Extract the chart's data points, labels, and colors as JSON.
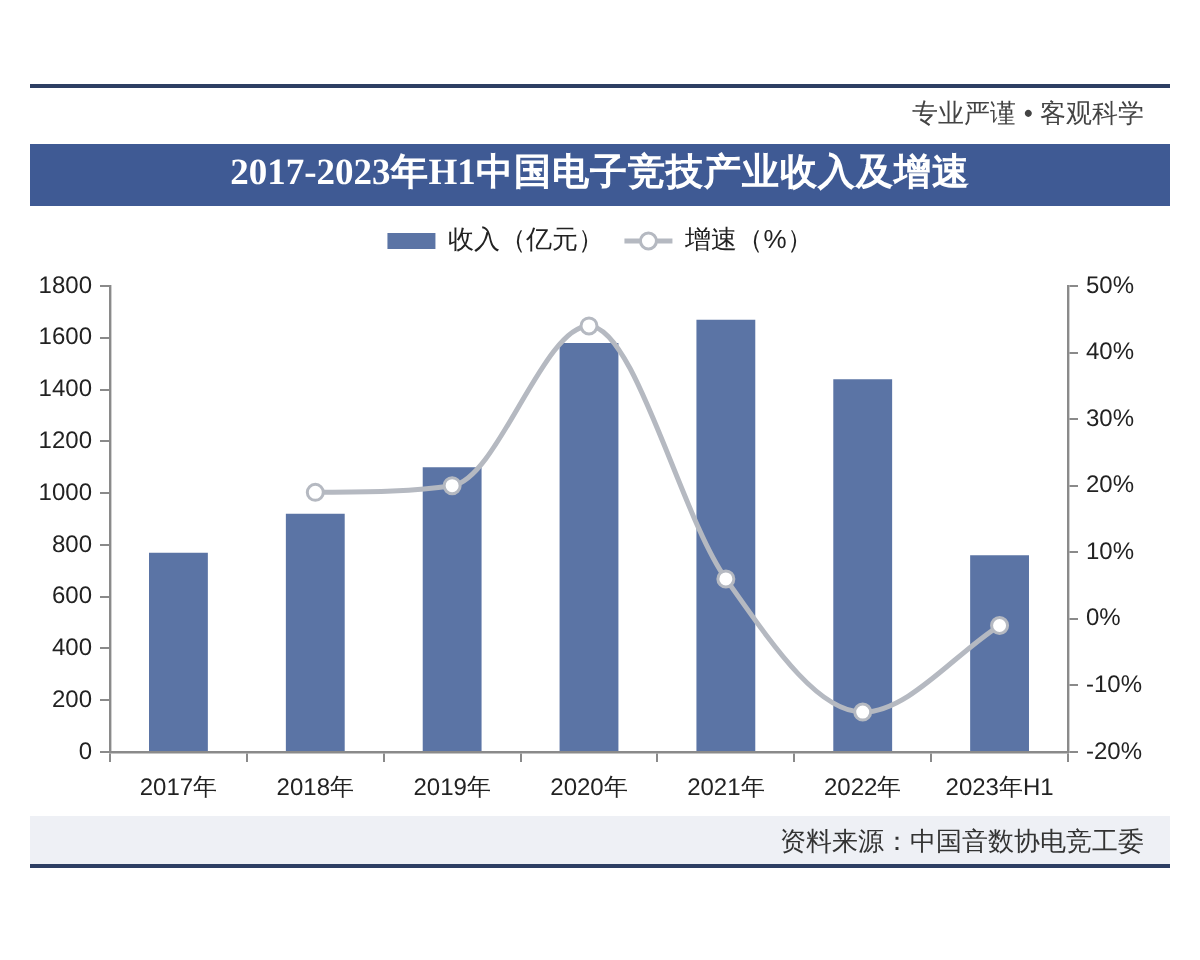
{
  "chart_data": {
    "type": "bar",
    "title": "2017-2023年H1中国电子竞技产业收入及增速",
    "annotations": [
      "专业严谨 • 客观科学",
      "资料来源：中国音数协电竞工委"
    ],
    "categories": [
      "2017年",
      "2018年",
      "2019年",
      "2020年",
      "2021年",
      "2022年",
      "2023年H1"
    ],
    "series": [
      {
        "name": "收入（亿元）",
        "color": "#5b74a5",
        "values": [
          770,
          920,
          1100,
          1580,
          1670,
          1440,
          760
        ]
      },
      {
        "name": "增速（%）",
        "type": "line",
        "axis": "y2",
        "color": "#b5b9c1",
        "values": [
          null,
          19,
          20,
          44,
          6,
          -14,
          -1
        ]
      }
    ],
    "ylim": [
      0,
      1800
    ],
    "yticks": [
      0,
      200,
      400,
      600,
      800,
      1000,
      1200,
      1400,
      1600,
      1800
    ],
    "y2lim": [
      -20,
      50
    ],
    "y2ticks": [
      {
        "value": -20,
        "label": "-20%"
      },
      {
        "value": -10,
        "label": "-10%"
      },
      {
        "value": 0,
        "label": "0%"
      },
      {
        "value": 10,
        "label": "10%"
      },
      {
        "value": 20,
        "label": "20%"
      },
      {
        "value": 30,
        "label": "30%"
      },
      {
        "value": 40,
        "label": "40%"
      },
      {
        "value": 50,
        "label": "50%"
      }
    ],
    "legend": "top",
    "marker": "circle"
  }
}
